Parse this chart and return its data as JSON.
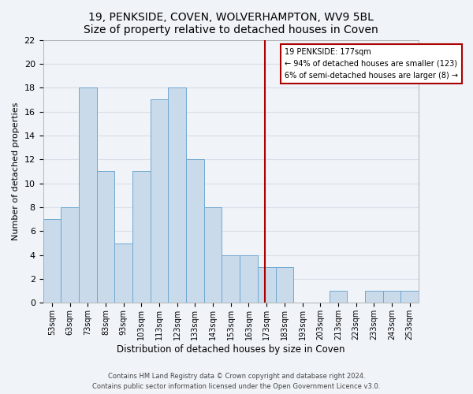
{
  "title": "19, PENKSIDE, COVEN, WOLVERHAMPTON, WV9 5BL",
  "subtitle": "Size of property relative to detached houses in Coven",
  "xlabel": "Distribution of detached houses by size in Coven",
  "ylabel": "Number of detached properties",
  "bin_starts": [
    53,
    63,
    73,
    83,
    93,
    103,
    113,
    123,
    133,
    143,
    153,
    163,
    173,
    183,
    193,
    203,
    213,
    223,
    233,
    243,
    253
  ],
  "bin_width": 10,
  "bin_labels": [
    "53sqm",
    "63sqm",
    "73sqm",
    "83sqm",
    "93sqm",
    "103sqm",
    "113sqm",
    "123sqm",
    "133sqm",
    "143sqm",
    "153sqm",
    "163sqm",
    "173sqm",
    "183sqm",
    "193sqm",
    "203sqm",
    "213sqm",
    "223sqm",
    "233sqm",
    "243sqm",
    "253sqm"
  ],
  "counts": [
    7,
    8,
    18,
    11,
    5,
    11,
    17,
    18,
    12,
    8,
    4,
    4,
    3,
    3,
    0,
    0,
    1,
    0,
    1,
    1,
    1
  ],
  "bar_facecolor": "#c9daea",
  "bar_edgecolor": "#6fa8d0",
  "vline_x": 177,
  "vline_color": "#aa0000",
  "ylim_max": 22,
  "yticks": [
    0,
    2,
    4,
    6,
    8,
    10,
    12,
    14,
    16,
    18,
    20,
    22
  ],
  "annotation_title": "19 PENKSIDE: 177sqm",
  "annotation_line1": "← 94% of detached houses are smaller (123)",
  "annotation_line2": "6% of semi-detached houses are larger (8) →",
  "annotation_box_edgecolor": "#aa0000",
  "fig_bg_color": "#f0f4f8",
  "plot_bg_color": "#f0f4f8",
  "grid_color": "#d8dee8",
  "footer_line1": "Contains HM Land Registry data © Crown copyright and database right 2024.",
  "footer_line2": "Contains public sector information licensed under the Open Government Licence v3.0."
}
